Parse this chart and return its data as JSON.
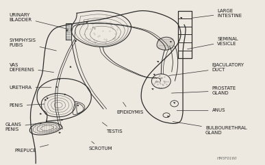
{
  "bg_color": "#ede9e0",
  "line_color": "#2a2a2a",
  "text_color": "#1a1a1a",
  "watermark": "HM3F0160",
  "figsize": [
    3.87,
    2.41
  ],
  "dpi": 100,
  "label_fs": 5.0,
  "labels": [
    {
      "text": "URINARY\nBLADDER",
      "xt": 0.035,
      "yt": 0.895,
      "xa": 0.265,
      "ya": 0.82,
      "ha": "left"
    },
    {
      "text": "SYMPHYSIS\nPUBIS",
      "xt": 0.035,
      "yt": 0.74,
      "xa": 0.22,
      "ya": 0.69,
      "ha": "left"
    },
    {
      "text": "VAS\nDEFERENS",
      "xt": 0.035,
      "yt": 0.59,
      "xa": 0.21,
      "ya": 0.56,
      "ha": "left"
    },
    {
      "text": "URETHRA",
      "xt": 0.035,
      "yt": 0.47,
      "xa": 0.2,
      "ya": 0.47,
      "ha": "left"
    },
    {
      "text": "PENIS",
      "xt": 0.035,
      "yt": 0.36,
      "xa": 0.175,
      "ya": 0.37,
      "ha": "left"
    },
    {
      "text": "GLANS\nPENIS",
      "xt": 0.02,
      "yt": 0.23,
      "xa": 0.155,
      "ya": 0.255,
      "ha": "left"
    },
    {
      "text": "PREPUCE",
      "xt": 0.055,
      "yt": 0.088,
      "xa": 0.19,
      "ya": 0.125,
      "ha": "left"
    },
    {
      "text": "LARGE\nINTESTINE",
      "xt": 0.82,
      "yt": 0.92,
      "xa": 0.72,
      "ya": 0.89,
      "ha": "left"
    },
    {
      "text": "SEMINAL\nVESICLE",
      "xt": 0.82,
      "yt": 0.75,
      "xa": 0.7,
      "ya": 0.7,
      "ha": "left"
    },
    {
      "text": "EJACULATORY\nDUCT",
      "xt": 0.8,
      "yt": 0.59,
      "xa": 0.63,
      "ya": 0.54,
      "ha": "left"
    },
    {
      "text": "PROSTATE\nGLAND",
      "xt": 0.8,
      "yt": 0.45,
      "xa": 0.64,
      "ya": 0.435,
      "ha": "left"
    },
    {
      "text": "ANUS",
      "xt": 0.8,
      "yt": 0.33,
      "xa": 0.66,
      "ya": 0.33,
      "ha": "left"
    },
    {
      "text": "BULBOURETHRAL\nGLAND",
      "xt": 0.775,
      "yt": 0.21,
      "xa": 0.645,
      "ya": 0.265,
      "ha": "left"
    },
    {
      "text": "EPIDIDYMIS",
      "xt": 0.49,
      "yt": 0.32,
      "xa": 0.46,
      "ya": 0.39,
      "ha": "center"
    },
    {
      "text": "TESTIS",
      "xt": 0.43,
      "yt": 0.205,
      "xa": 0.38,
      "ya": 0.265,
      "ha": "center"
    },
    {
      "text": "SCROTUM",
      "xt": 0.38,
      "yt": 0.098,
      "xa": 0.34,
      "ya": 0.15,
      "ha": "center"
    }
  ]
}
